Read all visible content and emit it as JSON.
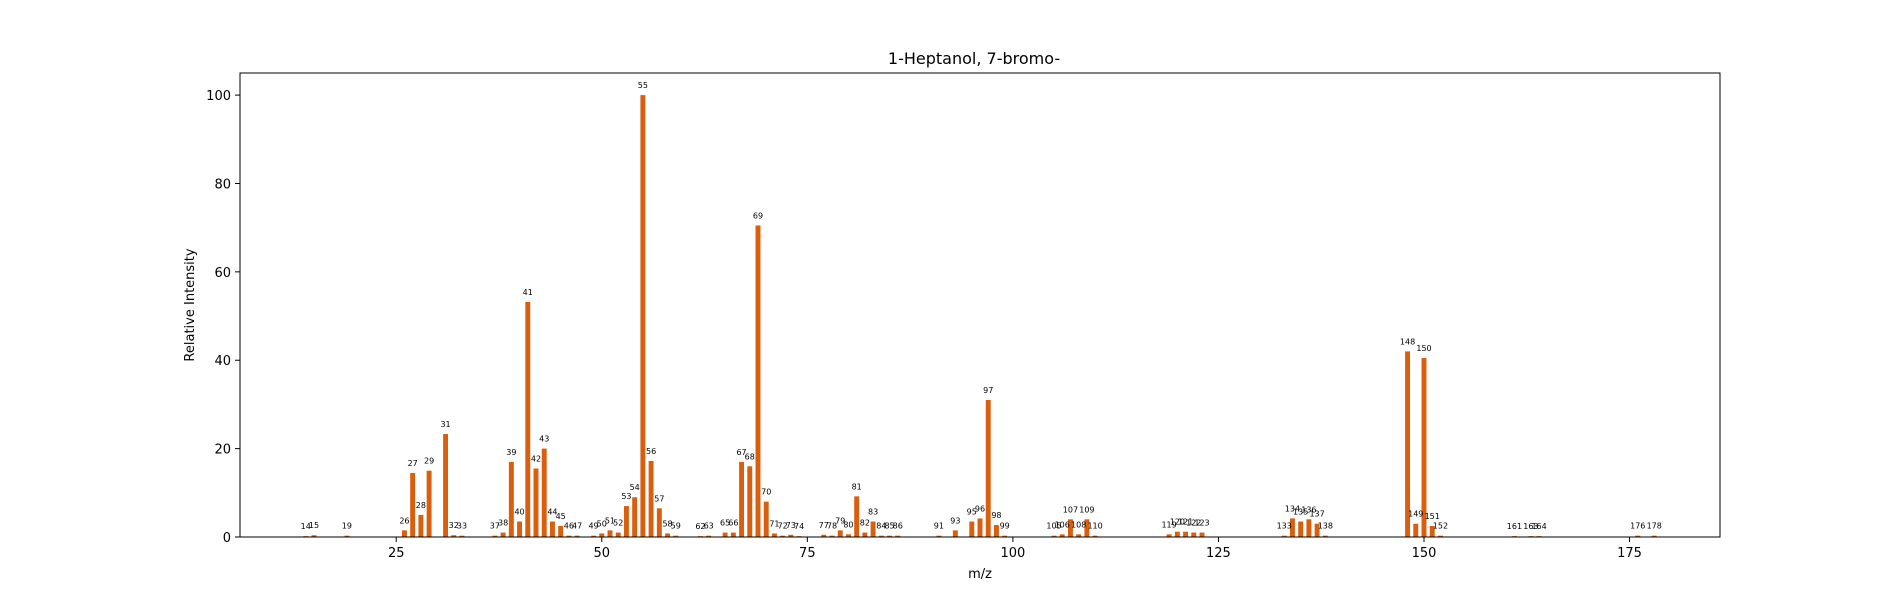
{
  "chart_data": {
    "type": "bar",
    "title": "1-Heptanol, 7-bromo-",
    "xlabel": "m/z",
    "ylabel": "Relative Intensity",
    "xlim": [
      6,
      186
    ],
    "ylim": [
      0,
      105
    ],
    "xticks": [
      25,
      50,
      75,
      100,
      125,
      150,
      175
    ],
    "yticks": [
      0,
      20,
      40,
      60,
      80,
      100
    ],
    "bar_color": "#d95f0e",
    "points": [
      {
        "x": 14,
        "y": 0.2
      },
      {
        "x": 15,
        "y": 0.4
      },
      {
        "x": 19,
        "y": 0.3
      },
      {
        "x": 26,
        "y": 1.5
      },
      {
        "x": 27,
        "y": 14.5
      },
      {
        "x": 28,
        "y": 5.0
      },
      {
        "x": 29,
        "y": 15.0
      },
      {
        "x": 31,
        "y": 23.3
      },
      {
        "x": 32,
        "y": 0.4
      },
      {
        "x": 33,
        "y": 0.3
      },
      {
        "x": 37,
        "y": 0.3
      },
      {
        "x": 38,
        "y": 1.0
      },
      {
        "x": 39,
        "y": 17.0
      },
      {
        "x": 40,
        "y": 3.5
      },
      {
        "x": 41,
        "y": 53.2
      },
      {
        "x": 42,
        "y": 15.5
      },
      {
        "x": 43,
        "y": 20.0
      },
      {
        "x": 44,
        "y": 3.5
      },
      {
        "x": 45,
        "y": 2.5
      },
      {
        "x": 46,
        "y": 0.3
      },
      {
        "x": 47,
        "y": 0.3
      },
      {
        "x": 49,
        "y": 0.3
      },
      {
        "x": 50,
        "y": 0.8
      },
      {
        "x": 51,
        "y": 1.5
      },
      {
        "x": 52,
        "y": 1.0
      },
      {
        "x": 53,
        "y": 7.0
      },
      {
        "x": 54,
        "y": 9.0
      },
      {
        "x": 55,
        "y": 100.0
      },
      {
        "x": 56,
        "y": 17.2
      },
      {
        "x": 57,
        "y": 6.5
      },
      {
        "x": 58,
        "y": 0.8
      },
      {
        "x": 59,
        "y": 0.3
      },
      {
        "x": 62,
        "y": 0.2
      },
      {
        "x": 63,
        "y": 0.3
      },
      {
        "x": 65,
        "y": 1.0
      },
      {
        "x": 66,
        "y": 1.0
      },
      {
        "x": 67,
        "y": 17.0
      },
      {
        "x": 68,
        "y": 16.0
      },
      {
        "x": 69,
        "y": 70.5
      },
      {
        "x": 70,
        "y": 8.0
      },
      {
        "x": 71,
        "y": 0.8
      },
      {
        "x": 72,
        "y": 0.3
      },
      {
        "x": 73,
        "y": 0.5
      },
      {
        "x": 74,
        "y": 0.2
      },
      {
        "x": 77,
        "y": 0.5
      },
      {
        "x": 78,
        "y": 0.3
      },
      {
        "x": 79,
        "y": 1.5
      },
      {
        "x": 80,
        "y": 0.6
      },
      {
        "x": 81,
        "y": 9.2
      },
      {
        "x": 82,
        "y": 1.0
      },
      {
        "x": 83,
        "y": 3.5
      },
      {
        "x": 84,
        "y": 0.3
      },
      {
        "x": 85,
        "y": 0.3
      },
      {
        "x": 86,
        "y": 0.3
      },
      {
        "x": 91,
        "y": 0.3
      },
      {
        "x": 93,
        "y": 1.5
      },
      {
        "x": 95,
        "y": 3.5
      },
      {
        "x": 96,
        "y": 4.2
      },
      {
        "x": 97,
        "y": 31.0
      },
      {
        "x": 98,
        "y": 2.7
      },
      {
        "x": 99,
        "y": 0.3
      },
      {
        "x": 105,
        "y": 0.3
      },
      {
        "x": 106,
        "y": 0.6
      },
      {
        "x": 107,
        "y": 4.0
      },
      {
        "x": 108,
        "y": 0.6
      },
      {
        "x": 109,
        "y": 4.0
      },
      {
        "x": 110,
        "y": 0.3
      },
      {
        "x": 119,
        "y": 0.6
      },
      {
        "x": 120,
        "y": 1.2
      },
      {
        "x": 121,
        "y": 1.2
      },
      {
        "x": 122,
        "y": 1.0
      },
      {
        "x": 123,
        "y": 1.0
      },
      {
        "x": 133,
        "y": 0.3
      },
      {
        "x": 134,
        "y": 4.2
      },
      {
        "x": 135,
        "y": 3.5
      },
      {
        "x": 136,
        "y": 4.0
      },
      {
        "x": 137,
        "y": 3.0
      },
      {
        "x": 138,
        "y": 0.3
      },
      {
        "x": 148,
        "y": 42.0
      },
      {
        "x": 149,
        "y": 3.0
      },
      {
        "x": 150,
        "y": 40.5
      },
      {
        "x": 151,
        "y": 2.5
      },
      {
        "x": 152,
        "y": 0.3
      },
      {
        "x": 161,
        "y": 0.2
      },
      {
        "x": 163,
        "y": 0.2
      },
      {
        "x": 164,
        "y": 0.2
      },
      {
        "x": 176,
        "y": 0.3
      },
      {
        "x": 178,
        "y": 0.3
      }
    ]
  }
}
